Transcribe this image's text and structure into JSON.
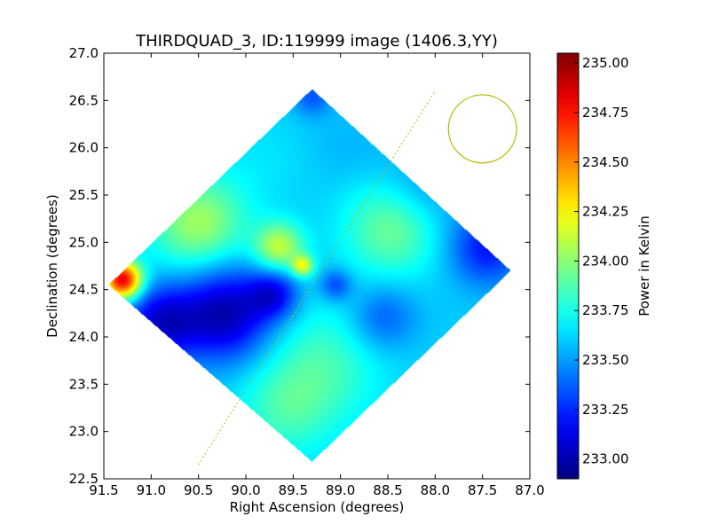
{
  "chart_data": {
    "type": "heatmap",
    "title": "THIRDQUAD_3, ID:119999 image (1406.3,YY)",
    "xlabel": "Right Ascension (degrees)",
    "ylabel": "Declination (degrees)",
    "xlim": [
      91.5,
      87.0
    ],
    "ylim": [
      22.5,
      27.0
    ],
    "x_ticks": [
      91.5,
      91.0,
      90.5,
      90.0,
      89.5,
      89.0,
      88.5,
      88.0,
      87.5,
      87.0
    ],
    "x_tick_labels": [
      "91.5",
      "91.0",
      "90.5",
      "90.0",
      "89.5",
      "89.0",
      "88.5",
      "88.0",
      "87.5",
      "87.0"
    ],
    "y_ticks": [
      22.5,
      23.0,
      23.5,
      24.0,
      24.5,
      25.0,
      25.5,
      26.0,
      26.5,
      27.0
    ],
    "y_tick_labels": [
      "22.5",
      "23.0",
      "23.5",
      "24.0",
      "24.5",
      "25.0",
      "25.5",
      "26.0",
      "26.5",
      "27.0"
    ],
    "colorbar": {
      "label": "Power in Kelvin",
      "colormap": "jet",
      "range": [
        232.9,
        235.05
      ],
      "ticks": [
        233.0,
        233.25,
        233.5,
        233.75,
        234.0,
        234.25,
        234.5,
        234.75,
        235.0
      ],
      "tick_labels": [
        "233.00",
        "233.25",
        "233.50",
        "233.75",
        "234.00",
        "234.25",
        "234.50",
        "234.75",
        "235.00"
      ]
    },
    "footprint": {
      "vertices": [
        [
          89.3,
          26.62
        ],
        [
          87.2,
          24.7
        ],
        [
          89.3,
          22.68
        ],
        [
          91.45,
          24.55
        ]
      ],
      "base_value": 233.6
    },
    "features": [
      {
        "x": 91.3,
        "y": 24.6,
        "value": 234.85,
        "sigma": 0.14
      },
      {
        "x": 90.5,
        "y": 25.2,
        "value": 234.05,
        "sigma": 0.35
      },
      {
        "x": 89.65,
        "y": 24.95,
        "value": 234.12,
        "sigma": 0.18
      },
      {
        "x": 88.45,
        "y": 25.15,
        "value": 233.95,
        "sigma": 0.35
      },
      {
        "x": 89.4,
        "y": 24.75,
        "value": 234.15,
        "sigma": 0.08
      },
      {
        "x": 90.2,
        "y": 24.25,
        "value": 233.0,
        "sigma": 0.35
      },
      {
        "x": 90.9,
        "y": 24.15,
        "value": 233.1,
        "sigma": 0.28
      },
      {
        "x": 89.7,
        "y": 24.45,
        "value": 233.2,
        "sigma": 0.18
      },
      {
        "x": 87.45,
        "y": 24.95,
        "value": 233.2,
        "sigma": 0.28
      },
      {
        "x": 88.15,
        "y": 25.55,
        "value": 233.45,
        "sigma": 0.3
      },
      {
        "x": 89.05,
        "y": 24.55,
        "value": 233.3,
        "sigma": 0.12
      },
      {
        "x": 88.55,
        "y": 24.2,
        "value": 233.35,
        "sigma": 0.25
      },
      {
        "x": 89.3,
        "y": 26.55,
        "value": 233.35,
        "sigma": 0.15
      },
      {
        "x": 89.2,
        "y": 23.7,
        "value": 233.85,
        "sigma": 0.45
      },
      {
        "x": 89.6,
        "y": 23.2,
        "value": 233.8,
        "sigma": 0.35
      },
      {
        "x": 88.7,
        "y": 23.3,
        "value": 233.6,
        "sigma": 0.3
      },
      {
        "x": 89.8,
        "y": 25.9,
        "value": 233.65,
        "sigma": 0.35
      },
      {
        "x": 88.9,
        "y": 26.0,
        "value": 233.55,
        "sigma": 0.3
      }
    ],
    "overlays": {
      "line": {
        "x": [
          90.5,
          88.0
        ],
        "y": [
          22.65,
          26.6
        ],
        "color": "#b5b500",
        "style": "dotted"
      },
      "beam_circle": {
        "x": 87.5,
        "y": 26.2,
        "radius": 0.36,
        "color": "#b5b500"
      }
    }
  }
}
